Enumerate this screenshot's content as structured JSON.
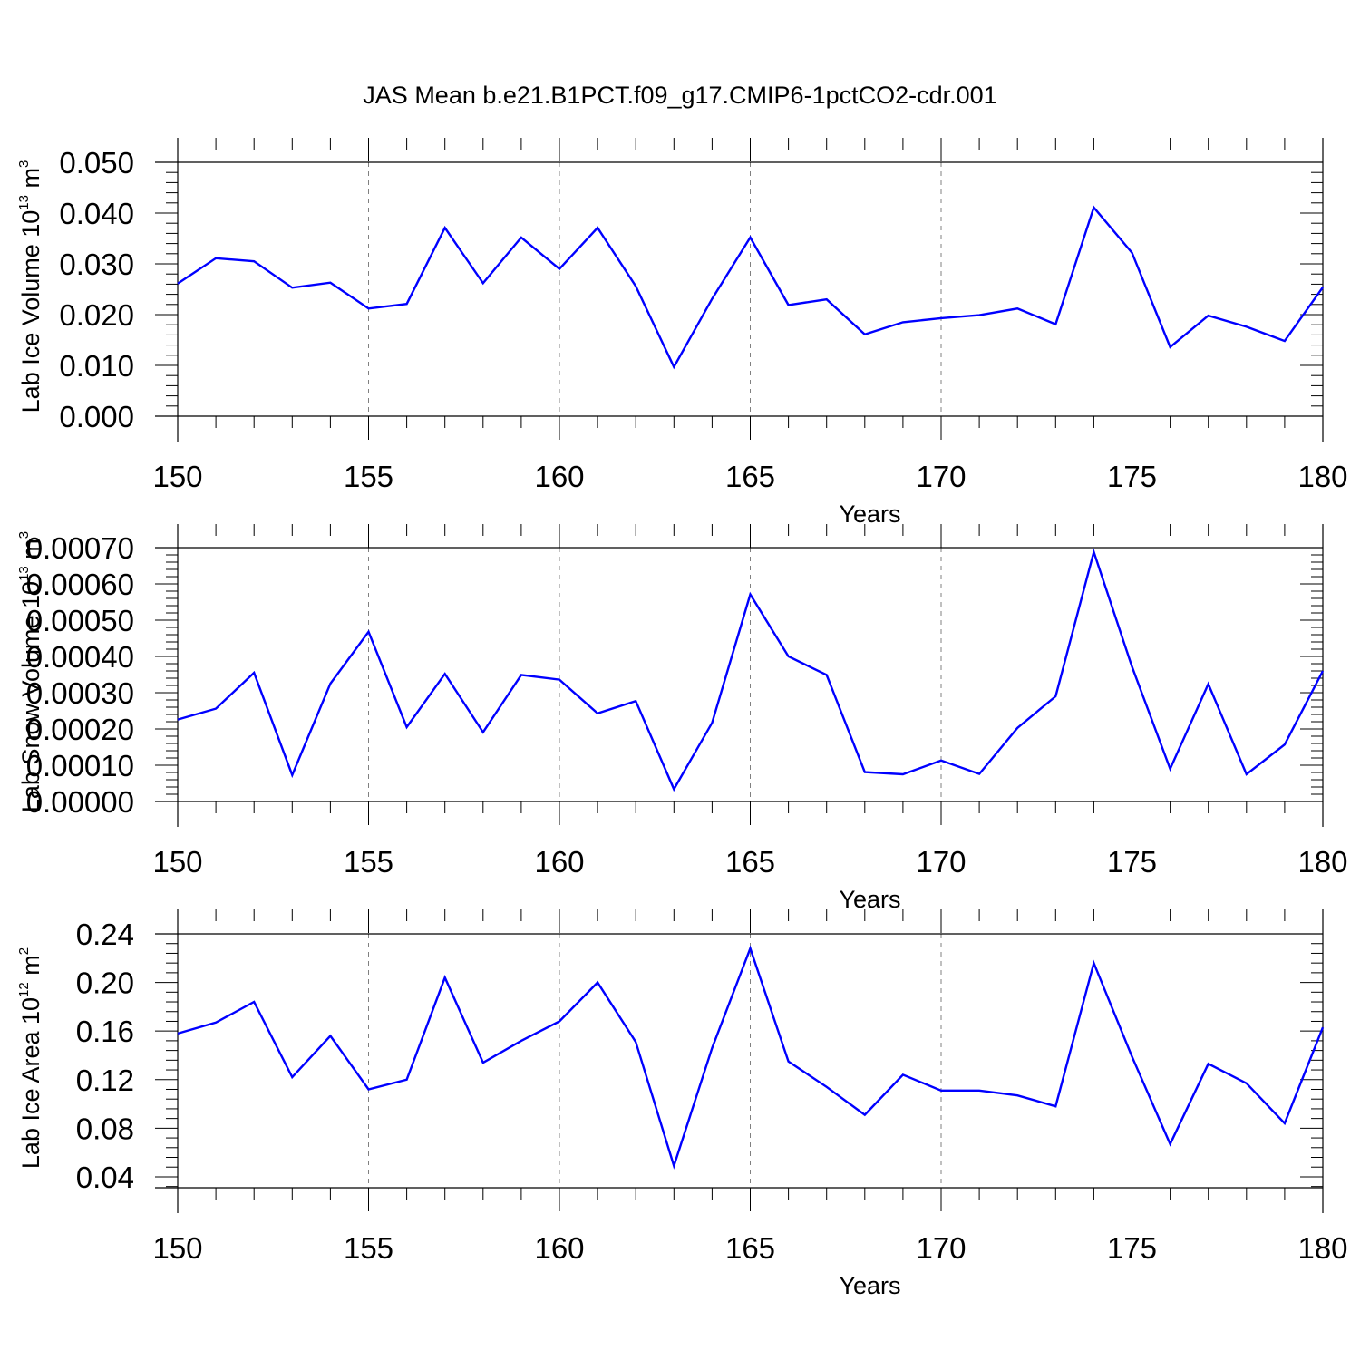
{
  "title": "JAS Mean b.e21.B1PCT.f09_g17.CMIP6-1pctCO2-cdr.001",
  "colors": {
    "line": "#0000ff",
    "axis": "#000000",
    "grid": "#808080"
  },
  "chart_data": [
    {
      "type": "line",
      "xlabel": "Years",
      "ylabel": {
        "text": "Lab Ice Volume 10",
        "sup": "13",
        "unit": " m",
        "unit_sup": "3"
      },
      "xlim": [
        150,
        180
      ],
      "ylim": [
        0.0,
        0.05
      ],
      "xticks": [
        "150",
        "155",
        "160",
        "165",
        "170",
        "175",
        "180"
      ],
      "yticks": [
        "0.000",
        "0.010",
        "0.020",
        "0.030",
        "0.040",
        "0.050"
      ],
      "grid": "vertical-dashed",
      "x": [
        150,
        151,
        152,
        153,
        154,
        155,
        156,
        157,
        158,
        159,
        160,
        161,
        162,
        163,
        164,
        165,
        166,
        167,
        168,
        169,
        170,
        171,
        172,
        173,
        174,
        175,
        176,
        177,
        178,
        179,
        180
      ],
      "values": [
        0.0261,
        0.0311,
        0.0305,
        0.0253,
        0.0263,
        0.0212,
        0.0221,
        0.0371,
        0.0262,
        0.0352,
        0.029,
        0.0371,
        0.0256,
        0.0097,
        0.0231,
        0.0352,
        0.0219,
        0.023,
        0.0161,
        0.0185,
        0.0193,
        0.0199,
        0.0212,
        0.0181,
        0.0411,
        0.0322,
        0.0136,
        0.0198,
        0.0176,
        0.0148,
        0.0254
      ]
    },
    {
      "type": "line",
      "xlabel": "Years",
      "ylabel": {
        "text": "Lab Snow Volume 10",
        "sup": "13",
        "unit": " m",
        "unit_sup": "3"
      },
      "xlim": [
        150,
        180
      ],
      "ylim": [
        0.0,
        0.0007
      ],
      "xticks": [
        "150",
        "155",
        "160",
        "165",
        "170",
        "175",
        "180"
      ],
      "yticks": [
        "0.00000",
        "0.00010",
        "0.00020",
        "0.00030",
        "0.00040",
        "0.00050",
        "0.00060",
        "0.00070"
      ],
      "grid": "vertical-dashed",
      "x": [
        150,
        151,
        152,
        153,
        154,
        155,
        156,
        157,
        158,
        159,
        160,
        161,
        162,
        163,
        164,
        165,
        166,
        167,
        168,
        169,
        170,
        171,
        172,
        173,
        174,
        175,
        176,
        177,
        178,
        179,
        180
      ],
      "values": [
        0.000226,
        0.000256,
        0.000355,
        7.3e-05,
        0.000325,
        0.000468,
        0.000205,
        0.000352,
        0.000191,
        0.000349,
        0.000336,
        0.000243,
        0.000277,
        3.4e-05,
        0.000217,
        0.000571,
        0.0004,
        0.000349,
        8.1e-05,
        7.5e-05,
        0.000113,
        7.6e-05,
        0.000203,
        0.00029,
        0.000688,
        0.000372,
        9e-05,
        0.000324,
        7.5e-05,
        0.000157,
        0.00036
      ]
    },
    {
      "type": "line",
      "xlabel": "Years",
      "ylabel": {
        "text": "Lab Ice Area 10",
        "sup": "12",
        "unit": " m",
        "unit_sup": "2"
      },
      "xlim": [
        150,
        180
      ],
      "ylim": [
        0.031,
        0.24
      ],
      "xticks": [
        "150",
        "155",
        "160",
        "165",
        "170",
        "175",
        "180"
      ],
      "yticks": [
        "0.04",
        "0.08",
        "0.12",
        "0.16",
        "0.20",
        "0.24"
      ],
      "grid": "vertical-dashed",
      "x": [
        150,
        151,
        152,
        153,
        154,
        155,
        156,
        157,
        158,
        159,
        160,
        161,
        162,
        163,
        164,
        165,
        166,
        167,
        168,
        169,
        170,
        171,
        172,
        173,
        174,
        175,
        176,
        177,
        178,
        179,
        180
      ],
      "values": [
        0.158,
        0.167,
        0.184,
        0.122,
        0.156,
        0.112,
        0.12,
        0.204,
        0.134,
        0.152,
        0.168,
        0.2,
        0.151,
        0.049,
        0.146,
        0.228,
        0.135,
        0.114,
        0.091,
        0.124,
        0.111,
        0.111,
        0.107,
        0.098,
        0.216,
        0.139,
        0.067,
        0.133,
        0.117,
        0.084,
        0.163
      ]
    }
  ]
}
